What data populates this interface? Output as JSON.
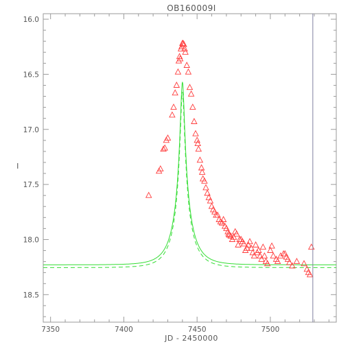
{
  "chart_data": {
    "type": "scatter",
    "title": "OB160009I",
    "xlabel": "JD - 2450000",
    "ylabel": "I",
    "xlim": [
      7345,
      7545
    ],
    "ylim": [
      18.75,
      15.95
    ],
    "y_inverted": true,
    "x_ticks": [
      7350,
      7400,
      7450,
      7500
    ],
    "x_tick_labels": [
      "7350",
      "7400",
      "7450",
      "7500"
    ],
    "y_ticks": [
      16.0,
      16.5,
      17.0,
      17.5,
      18.0,
      18.5
    ],
    "y_tick_labels": [
      "16.0",
      "16.5",
      "17.0",
      "17.5",
      "18.0",
      "18.5"
    ],
    "grid": false,
    "colors": {
      "axes": "#9a9a9a",
      "points": "#ff3b3b",
      "model": "#33dd33",
      "marker_line": "#8080a0",
      "text": "#555555"
    },
    "vertical_line_x": 7529,
    "series": [
      {
        "type": "scatter",
        "marker": "triangle",
        "points": [
          [
            7417,
            17.6
          ],
          [
            7424,
            17.38
          ],
          [
            7425,
            17.36
          ],
          [
            7427,
            17.18
          ],
          [
            7428,
            17.17
          ],
          [
            7429,
            17.1
          ],
          [
            7430,
            17.08
          ],
          [
            7433,
            16.87
          ],
          [
            7434,
            16.8
          ],
          [
            7435,
            16.67
          ],
          [
            7436,
            16.6
          ],
          [
            7437,
            16.48
          ],
          [
            7437.5,
            16.38
          ],
          [
            7438,
            16.34
          ],
          [
            7438.5,
            16.36
          ],
          [
            7439,
            16.27
          ],
          [
            7439.5,
            16.25
          ],
          [
            7440,
            16.22
          ],
          [
            7440.5,
            16.22
          ],
          [
            7441,
            16.23
          ],
          [
            7441.5,
            16.27
          ],
          [
            7442,
            16.3
          ],
          [
            7443,
            16.42
          ],
          [
            7444,
            16.48
          ],
          [
            7445,
            16.62
          ],
          [
            7446,
            16.68
          ],
          [
            7447,
            16.8
          ],
          [
            7448,
            16.93
          ],
          [
            7449,
            17.04
          ],
          [
            7450,
            17.1
          ],
          [
            7450.5,
            17.13
          ],
          [
            7451,
            17.18
          ],
          [
            7452,
            17.28
          ],
          [
            7453,
            17.35
          ],
          [
            7453.5,
            17.39
          ],
          [
            7454,
            17.45
          ],
          [
            7455,
            17.47
          ],
          [
            7456,
            17.53
          ],
          [
            7457,
            17.58
          ],
          [
            7458,
            17.62
          ],
          [
            7459,
            17.65
          ],
          [
            7460,
            17.7
          ],
          [
            7461,
            17.73
          ],
          [
            7462,
            17.75
          ],
          [
            7463,
            17.78
          ],
          [
            7464,
            17.78
          ],
          [
            7465,
            17.82
          ],
          [
            7466,
            17.84
          ],
          [
            7467,
            17.85
          ],
          [
            7468,
            17.82
          ],
          [
            7469,
            17.88
          ],
          [
            7470,
            17.9
          ],
          [
            7471,
            17.93
          ],
          [
            7471.5,
            17.95
          ],
          [
            7472,
            17.96
          ],
          [
            7473,
            17.97
          ],
          [
            7474,
            18.0
          ],
          [
            7475,
            17.98
          ],
          [
            7476,
            17.93
          ],
          [
            7477,
            17.95
          ],
          [
            7478,
            18.05
          ],
          [
            7479,
            18.0
          ],
          [
            7480,
            18.0
          ],
          [
            7481,
            18.02
          ],
          [
            7482,
            18.04
          ],
          [
            7483,
            18.1
          ],
          [
            7484,
            18.08
          ],
          [
            7485,
            18.05
          ],
          [
            7486,
            18.02
          ],
          [
            7487,
            18.08
          ],
          [
            7488,
            18.12
          ],
          [
            7489,
            18.15
          ],
          [
            7490,
            18.05
          ],
          [
            7491,
            18.12
          ],
          [
            7492,
            18.1
          ],
          [
            7493,
            18.15
          ],
          [
            7494,
            18.18
          ],
          [
            7495,
            18.07
          ],
          [
            7496,
            18.15
          ],
          [
            7497,
            18.2
          ],
          [
            7498,
            18.22
          ],
          [
            7500,
            18.1
          ],
          [
            7501,
            18.06
          ],
          [
            7502,
            18.15
          ],
          [
            7504,
            18.18
          ],
          [
            7505,
            18.2
          ],
          [
            7507,
            18.15
          ],
          [
            7509,
            18.13
          ],
          [
            7510,
            18.13
          ],
          [
            7511,
            18.16
          ],
          [
            7512,
            18.18
          ],
          [
            7513,
            18.21
          ],
          [
            7515,
            18.24
          ],
          [
            7518,
            18.2
          ],
          [
            7523,
            18.22
          ],
          [
            7525,
            18.27
          ],
          [
            7526,
            18.3
          ],
          [
            7527,
            18.32
          ],
          [
            7528,
            18.07
          ]
        ]
      },
      {
        "type": "line",
        "style": "solid",
        "model": {
          "t0": 7440,
          "tE": 12.5,
          "u0": 0.1,
          "fs": 0.4,
          "mbase": 18.23
        }
      },
      {
        "type": "line",
        "style": "dashed",
        "model": {
          "t0": 7440,
          "tE": 12.5,
          "u0": 0.1,
          "fs": 0.37,
          "mbase": 18.255
        }
      }
    ]
  }
}
